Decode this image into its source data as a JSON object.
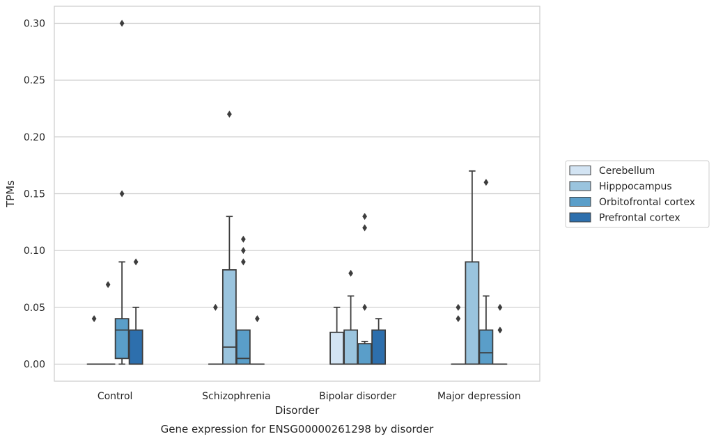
{
  "chart_data": {
    "type": "box",
    "title": "",
    "caption": "Gene expression for ENSG00000261298 by disorder",
    "xlabel": "Disorder",
    "ylabel": "TPMs",
    "ylim": [
      -0.015,
      0.315
    ],
    "yticks": [
      0.0,
      0.05,
      0.1,
      0.15,
      0.2,
      0.25,
      0.3
    ],
    "ytick_labels": [
      "0.00",
      "0.05",
      "0.10",
      "0.15",
      "0.20",
      "0.25",
      "0.30"
    ],
    "grid": true,
    "legend_position": "right",
    "categories": [
      "Control",
      "Schizophrenia",
      "Bipolar disorder",
      "Major depression"
    ],
    "series": [
      {
        "name": "Cerebellum",
        "color": "#d3e4f3",
        "boxes": [
          {
            "q1": 0.0,
            "median": 0.0,
            "q3": 0.0,
            "whisker_low": 0.0,
            "whisker_high": 0.0,
            "outliers": [
              0.04
            ]
          },
          {
            "q1": 0.0,
            "median": 0.0,
            "q3": 0.0,
            "whisker_low": 0.0,
            "whisker_high": 0.0,
            "outliers": [
              0.05
            ]
          },
          {
            "q1": 0.0,
            "median": 0.0,
            "q3": 0.028,
            "whisker_low": 0.0,
            "whisker_high": 0.05,
            "outliers": []
          },
          {
            "q1": 0.0,
            "median": 0.0,
            "q3": 0.0,
            "whisker_low": 0.0,
            "whisker_high": 0.0,
            "outliers": [
              0.05,
              0.04
            ]
          }
        ]
      },
      {
        "name": "Hipppocampus",
        "color": "#9ac4de",
        "boxes": [
          {
            "q1": 0.0,
            "median": 0.0,
            "q3": 0.0,
            "whisker_low": 0.0,
            "whisker_high": 0.0,
            "outliers": [
              0.07
            ]
          },
          {
            "q1": 0.0,
            "median": 0.015,
            "q3": 0.083,
            "whisker_low": 0.0,
            "whisker_high": 0.13,
            "outliers": [
              0.22
            ]
          },
          {
            "q1": 0.0,
            "median": 0.0,
            "q3": 0.03,
            "whisker_low": 0.0,
            "whisker_high": 0.06,
            "outliers": [
              0.08
            ]
          },
          {
            "q1": 0.0,
            "median": 0.0,
            "q3": 0.09,
            "whisker_low": 0.0,
            "whisker_high": 0.17,
            "outliers": []
          }
        ]
      },
      {
        "name": "Orbitofrontal cortex",
        "color": "#5a9ec9",
        "boxes": [
          {
            "q1": 0.005,
            "median": 0.03,
            "q3": 0.04,
            "whisker_low": 0.0,
            "whisker_high": 0.09,
            "outliers": [
              0.3,
              0.15
            ]
          },
          {
            "q1": 0.0,
            "median": 0.005,
            "q3": 0.03,
            "whisker_low": 0.0,
            "whisker_high": 0.03,
            "outliers": [
              0.11,
              0.1,
              0.09
            ]
          },
          {
            "q1": 0.0,
            "median": 0.0,
            "q3": 0.018,
            "whisker_low": 0.0,
            "whisker_high": 0.02,
            "outliers": [
              0.13,
              0.12,
              0.05
            ]
          },
          {
            "q1": 0.0,
            "median": 0.01,
            "q3": 0.03,
            "whisker_low": 0.0,
            "whisker_high": 0.06,
            "outliers": [
              0.16
            ]
          }
        ]
      },
      {
        "name": "Prefrontal cortex",
        "color": "#2d6fad",
        "boxes": [
          {
            "q1": 0.0,
            "median": 0.0,
            "q3": 0.03,
            "whisker_low": 0.0,
            "whisker_high": 0.05,
            "outliers": [
              0.09
            ]
          },
          {
            "q1": 0.0,
            "median": 0.0,
            "q3": 0.0,
            "whisker_low": 0.0,
            "whisker_high": 0.0,
            "outliers": [
              0.04
            ]
          },
          {
            "q1": 0.0,
            "median": 0.0,
            "q3": 0.03,
            "whisker_low": 0.0,
            "whisker_high": 0.04,
            "outliers": []
          },
          {
            "q1": 0.0,
            "median": 0.0,
            "q3": 0.0,
            "whisker_low": 0.0,
            "whisker_high": 0.0,
            "outliers": [
              0.05,
              0.03
            ]
          }
        ]
      }
    ]
  }
}
